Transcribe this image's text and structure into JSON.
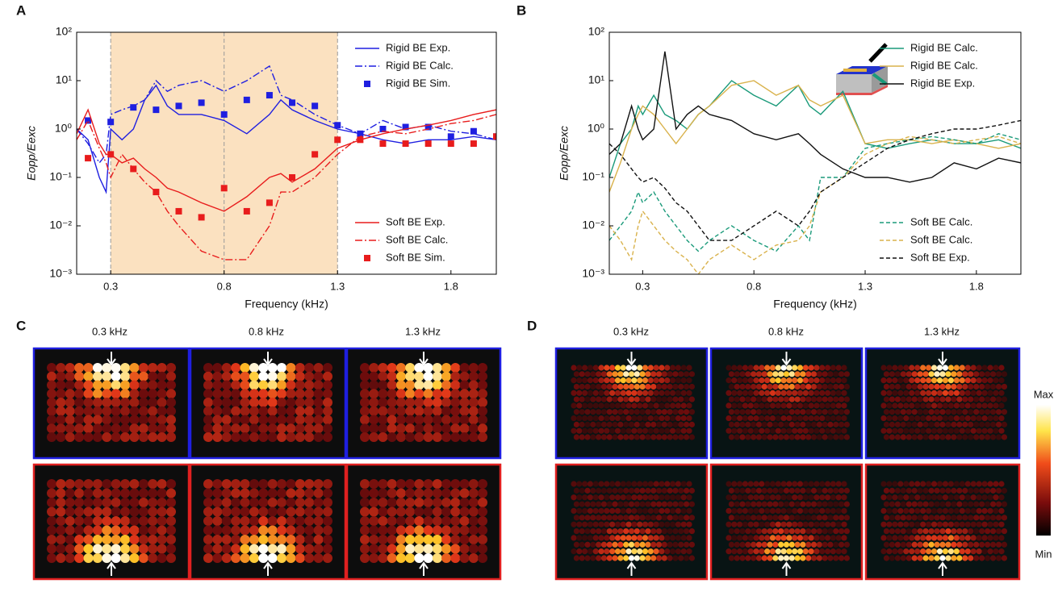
{
  "chart_data": [
    {
      "type": "line",
      "x_label": "Frequency (kHz)",
      "y_label": "Eopp/Eexc",
      "log_y": true,
      "xlim": [
        0.15,
        2.0
      ],
      "ylim": [
        0.001,
        100
      ],
      "xticks": [
        0.3,
        0.8,
        1.3,
        1.8
      ],
      "yticks": [
        {
          "value": 0.001,
          "label": "10⁻³"
        },
        {
          "value": 0.01,
          "label": "10⁻²"
        },
        {
          "value": 0.1,
          "label": "10⁻¹"
        },
        {
          "value": 1,
          "label": "10⁰"
        },
        {
          "value": 10,
          "label": "10¹"
        },
        {
          "value": 100,
          "label": "10²"
        }
      ],
      "shade": {
        "range": [
          0.3,
          1.3
        ],
        "color": "#fbe1c0"
      },
      "vlines": [
        0.3,
        0.8,
        1.3
      ],
      "series": [
        {
          "name": "Rigid BE Exp.",
          "color": "#1f1fe0",
          "style": "solid",
          "legend": "upper right",
          "x": [
            0.15,
            0.2,
            0.25,
            0.28,
            0.3,
            0.35,
            0.4,
            0.45,
            0.5,
            0.55,
            0.6,
            0.7,
            0.8,
            0.9,
            1.0,
            1.05,
            1.1,
            1.2,
            1.3,
            1.4,
            1.5,
            1.6,
            1.7,
            1.8,
            1.9,
            2.0
          ],
          "values": [
            1.0,
            0.6,
            0.1,
            0.05,
            1.0,
            0.6,
            1.0,
            4,
            8,
            3,
            2,
            2,
            1.5,
            0.8,
            2,
            4,
            2.5,
            1.5,
            1.0,
            0.8,
            0.6,
            0.5,
            0.6,
            0.6,
            0.7,
            0.6
          ]
        },
        {
          "name": "Rigid BE Calc.",
          "color": "#1f1fe0",
          "style": "dashdot",
          "legend": "upper right",
          "x": [
            0.15,
            0.2,
            0.25,
            0.28,
            0.3,
            0.35,
            0.4,
            0.45,
            0.5,
            0.55,
            0.6,
            0.7,
            0.8,
            0.9,
            1.0,
            1.05,
            1.1,
            1.2,
            1.3,
            1.4,
            1.5,
            1.6,
            1.7,
            1.8,
            1.9,
            2.0
          ],
          "values": [
            1.0,
            0.5,
            0.2,
            0.3,
            2,
            2.5,
            3,
            4,
            10,
            6,
            8,
            10,
            6,
            10,
            20,
            5,
            4,
            2,
            1.2,
            0.8,
            1.5,
            1.0,
            1.2,
            0.9,
            0.8,
            0.6
          ]
        },
        {
          "name": "Rigid BE Sim.",
          "color": "#1f1fe0",
          "style": "marker",
          "legend": "upper right",
          "x": [
            0.2,
            0.3,
            0.4,
            0.5,
            0.6,
            0.7,
            0.8,
            0.9,
            1.0,
            1.1,
            1.2,
            1.3,
            1.4,
            1.5,
            1.6,
            1.7,
            1.8,
            1.9,
            2.0
          ],
          "values": [
            1.5,
            1.4,
            2.8,
            2.5,
            3,
            3.5,
            2,
            4,
            5,
            3.5,
            3,
            1.2,
            0.8,
            1.0,
            1.1,
            1.1,
            0.7,
            0.9,
            0.7
          ]
        },
        {
          "name": "Soft BE Exp.",
          "color": "#e81c1c",
          "style": "solid",
          "legend": "lower right",
          "x": [
            0.15,
            0.2,
            0.25,
            0.28,
            0.3,
            0.35,
            0.4,
            0.45,
            0.5,
            0.55,
            0.6,
            0.7,
            0.8,
            0.9,
            1.0,
            1.05,
            1.1,
            1.2,
            1.3,
            1.4,
            1.5,
            1.6,
            1.7,
            1.8,
            1.9,
            2.0
          ],
          "values": [
            0.8,
            2.5,
            0.5,
            0.3,
            0.3,
            0.2,
            0.25,
            0.15,
            0.1,
            0.06,
            0.05,
            0.03,
            0.02,
            0.04,
            0.1,
            0.12,
            0.08,
            0.15,
            0.4,
            0.6,
            0.8,
            1.0,
            1.2,
            1.5,
            2,
            2.5
          ]
        },
        {
          "name": "Soft BE Calc.",
          "color": "#e81c1c",
          "style": "dashdot",
          "legend": "lower right",
          "x": [
            0.15,
            0.2,
            0.25,
            0.28,
            0.3,
            0.35,
            0.4,
            0.45,
            0.5,
            0.55,
            0.6,
            0.7,
            0.8,
            0.9,
            1.0,
            1.05,
            1.1,
            1.2,
            1.3,
            1.4,
            1.5,
            1.6,
            1.7,
            1.8,
            1.9,
            2.0
          ],
          "values": [
            0.6,
            1.5,
            0.4,
            0.2,
            0.1,
            0.3,
            0.15,
            0.08,
            0.05,
            0.02,
            0.01,
            0.003,
            0.002,
            0.002,
            0.01,
            0.05,
            0.05,
            0.1,
            0.3,
            0.7,
            0.9,
            0.8,
            1.0,
            1.3,
            1.5,
            2
          ]
        },
        {
          "name": "Soft BE Sim.",
          "color": "#e81c1c",
          "style": "marker",
          "legend": "lower right",
          "x": [
            0.2,
            0.3,
            0.4,
            0.5,
            0.6,
            0.7,
            0.8,
            0.9,
            1.0,
            1.1,
            1.2,
            1.3,
            1.4,
            1.5,
            1.6,
            1.7,
            1.8,
            1.9,
            2.0
          ],
          "values": [
            0.25,
            0.3,
            0.15,
            0.05,
            0.02,
            0.015,
            0.06,
            0.02,
            0.03,
            0.1,
            0.3,
            0.6,
            0.6,
            0.5,
            0.5,
            0.5,
            0.5,
            0.5,
            0.7
          ]
        }
      ]
    },
    {
      "type": "line",
      "x_label": "Frequency (kHz)",
      "y_label": "Eopp/Eexc",
      "log_y": true,
      "xlim": [
        0.15,
        2.0
      ],
      "ylim": [
        0.001,
        100
      ],
      "xticks": [
        0.3,
        0.8,
        1.3,
        1.8
      ],
      "yticks": [
        {
          "value": 0.001,
          "label": "10⁻³"
        },
        {
          "value": 0.01,
          "label": "10⁻²"
        },
        {
          "value": 0.1,
          "label": "10⁻¹"
        },
        {
          "value": 1,
          "label": "10⁰"
        },
        {
          "value": 10,
          "label": "10¹"
        },
        {
          "value": 100,
          "label": "10²"
        }
      ],
      "series": [
        {
          "name": "Rigid BE Calc.",
          "color": "#1a9a7a",
          "style": "solid",
          "legend": "upper right",
          "x": [
            0.15,
            0.2,
            0.25,
            0.28,
            0.3,
            0.35,
            0.4,
            0.45,
            0.5,
            0.55,
            0.6,
            0.7,
            0.8,
            0.9,
            1.0,
            1.05,
            1.1,
            1.2,
            1.3,
            1.4,
            1.5,
            1.6,
            1.7,
            1.8,
            1.9,
            2.0
          ],
          "values": [
            0.1,
            0.5,
            1,
            3,
            2,
            5,
            2,
            1.5,
            1,
            2,
            3,
            10,
            5,
            3,
            8,
            3,
            2,
            6,
            0.5,
            0.4,
            0.5,
            0.6,
            0.5,
            0.5,
            0.6,
            0.4
          ]
        },
        {
          "name": "Rigid BE Calc.",
          "color": "#d9b24c",
          "style": "solid",
          "legend": "upper right",
          "x": [
            0.15,
            0.2,
            0.25,
            0.28,
            0.3,
            0.35,
            0.4,
            0.45,
            0.5,
            0.55,
            0.6,
            0.7,
            0.8,
            0.9,
            1.0,
            1.05,
            1.1,
            1.2,
            1.3,
            1.4,
            1.5,
            1.6,
            1.7,
            1.8,
            1.9,
            2.0
          ],
          "values": [
            0.05,
            0.2,
            1,
            2,
            3,
            2,
            1,
            0.5,
            1,
            2,
            3,
            8,
            10,
            5,
            8,
            4,
            3,
            5,
            0.5,
            0.6,
            0.6,
            0.5,
            0.6,
            0.5,
            0.4,
            0.5
          ]
        },
        {
          "name": "Rigid BE Exp.",
          "color": "#111111",
          "style": "solid",
          "legend": "upper right",
          "x": [
            0.15,
            0.2,
            0.25,
            0.28,
            0.3,
            0.35,
            0.4,
            0.45,
            0.5,
            0.55,
            0.6,
            0.7,
            0.8,
            0.9,
            1.0,
            1.05,
            1.1,
            1.2,
            1.3,
            1.4,
            1.5,
            1.6,
            1.7,
            1.8,
            1.9,
            2.0
          ],
          "values": [
            0.3,
            0.5,
            3,
            1,
            0.6,
            1,
            40,
            1,
            2,
            3,
            2,
            1.5,
            0.8,
            0.6,
            0.8,
            0.5,
            0.3,
            0.15,
            0.1,
            0.1,
            0.08,
            0.1,
            0.2,
            0.15,
            0.25,
            0.2
          ]
        },
        {
          "name": "Soft BE Calc.",
          "color": "#1a9a7a",
          "style": "dashed",
          "legend": "lower right",
          "x": [
            0.15,
            0.2,
            0.25,
            0.28,
            0.3,
            0.35,
            0.4,
            0.45,
            0.5,
            0.55,
            0.6,
            0.7,
            0.8,
            0.9,
            1.0,
            1.05,
            1.1,
            1.2,
            1.3,
            1.4,
            1.5,
            1.6,
            1.7,
            1.8,
            1.9,
            2.0
          ],
          "values": [
            0.005,
            0.01,
            0.02,
            0.05,
            0.03,
            0.05,
            0.02,
            0.01,
            0.005,
            0.003,
            0.005,
            0.01,
            0.005,
            0.003,
            0.01,
            0.005,
            0.1,
            0.1,
            0.4,
            0.5,
            0.6,
            0.7,
            0.6,
            0.5,
            0.8,
            0.6
          ]
        },
        {
          "name": "Soft BE Calc.",
          "color": "#d9b24c",
          "style": "dashed",
          "legend": "lower right",
          "x": [
            0.15,
            0.2,
            0.25,
            0.28,
            0.3,
            0.35,
            0.4,
            0.45,
            0.5,
            0.55,
            0.6,
            0.7,
            0.8,
            0.9,
            1.0,
            1.05,
            1.1,
            1.2,
            1.3,
            1.4,
            1.5,
            1.6,
            1.7,
            1.8,
            1.9,
            2.0
          ],
          "values": [
            0.01,
            0.005,
            0.002,
            0.01,
            0.02,
            0.01,
            0.005,
            0.003,
            0.002,
            0.001,
            0.002,
            0.004,
            0.002,
            0.004,
            0.005,
            0.01,
            0.05,
            0.1,
            0.3,
            0.5,
            0.7,
            0.6,
            0.5,
            0.6,
            0.7,
            0.5
          ]
        },
        {
          "name": "Soft BE Exp.",
          "color": "#111111",
          "style": "dashed",
          "legend": "lower right",
          "x": [
            0.15,
            0.2,
            0.25,
            0.28,
            0.3,
            0.35,
            0.4,
            0.45,
            0.5,
            0.55,
            0.6,
            0.7,
            0.8,
            0.9,
            1.0,
            1.05,
            1.1,
            1.2,
            1.3,
            1.4,
            1.5,
            1.6,
            1.7,
            1.8,
            1.9,
            2.0
          ],
          "values": [
            0.5,
            0.3,
            0.15,
            0.1,
            0.08,
            0.1,
            0.06,
            0.03,
            0.02,
            0.01,
            0.005,
            0.005,
            0.01,
            0.02,
            0.01,
            0.02,
            0.05,
            0.1,
            0.2,
            0.4,
            0.6,
            0.8,
            1.0,
            1.0,
            1.2,
            1.5
          ]
        }
      ]
    }
  ],
  "panel_labels": [
    "A",
    "B",
    "C",
    "D"
  ],
  "panel_c": {
    "titles": [
      "0.3 kHz",
      "0.8 kHz",
      "1.3 kHz"
    ]
  },
  "panel_d": {
    "titles": [
      "0.3 kHz",
      "0.8 kHz",
      "1.3 kHz"
    ],
    "colorbar": {
      "max": "Max",
      "min": "Min"
    }
  }
}
